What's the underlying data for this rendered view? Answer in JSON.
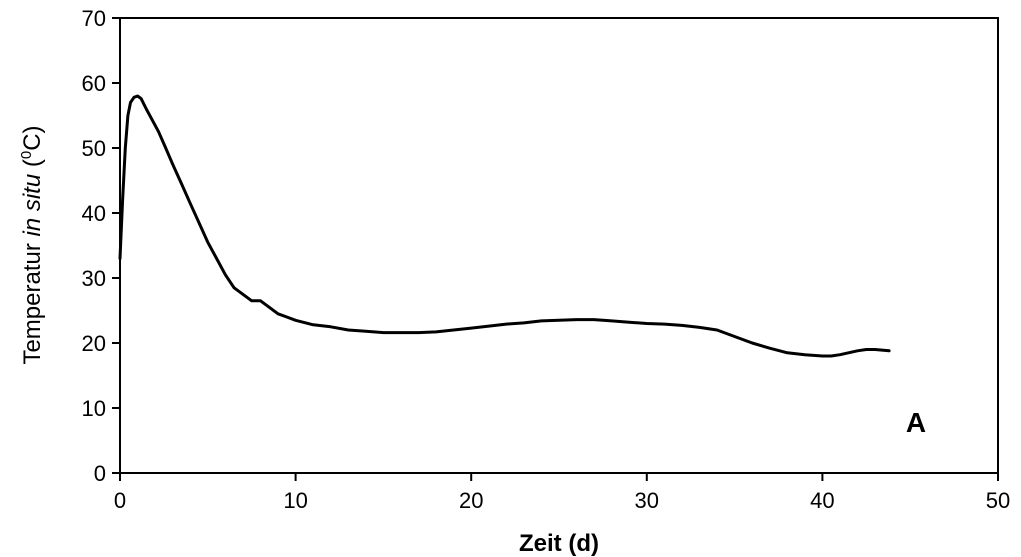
{
  "chart_data": {
    "type": "line",
    "xlabel": "Zeit (d)",
    "ylabel": {
      "prefix": "Temperatur ",
      "italic": "in situ",
      "unit_open": " (",
      "superscript": "0",
      "unit_close": "C)"
    },
    "panel_label": "A",
    "xlim": [
      0,
      50
    ],
    "ylim": [
      0,
      70
    ],
    "xticks": [
      0,
      10,
      20,
      30,
      40,
      50
    ],
    "yticks": [
      0,
      10,
      20,
      30,
      40,
      50,
      60,
      70
    ],
    "grid": false,
    "series": [
      {
        "color": "#000000",
        "x": [
          0.0,
          0.15,
          0.3,
          0.45,
          0.6,
          0.8,
          1.0,
          1.2,
          1.5,
          1.8,
          2.2,
          2.6,
          3.0,
          3.5,
          4.0,
          4.5,
          5.0,
          5.5,
          6.0,
          6.5,
          7.0,
          7.5,
          8.0,
          8.5,
          9.0,
          9.5,
          10.0,
          11.0,
          12.0,
          13.0,
          14.0,
          15.0,
          16.0,
          17.0,
          18.0,
          19.0,
          20.0,
          21.0,
          22.0,
          23.0,
          24.0,
          25.0,
          26.0,
          27.0,
          28.0,
          29.0,
          30.0,
          31.0,
          32.0,
          33.0,
          34.0,
          35.0,
          36.0,
          37.0,
          38.0,
          39.0,
          40.0,
          40.5,
          41.0,
          42.0,
          42.5,
          43.0,
          43.8
        ],
        "y": [
          33.0,
          42.0,
          50.0,
          55.0,
          57.0,
          57.8,
          58.0,
          57.6,
          56.0,
          54.5,
          52.5,
          50.0,
          47.5,
          44.5,
          41.5,
          38.5,
          35.5,
          33.0,
          30.5,
          28.5,
          27.5,
          26.5,
          26.5,
          25.5,
          24.5,
          24.0,
          23.5,
          22.8,
          22.5,
          22.0,
          21.8,
          21.6,
          21.6,
          21.6,
          21.7,
          22.0,
          22.3,
          22.6,
          22.9,
          23.1,
          23.4,
          23.5,
          23.6,
          23.6,
          23.4,
          23.2,
          23.0,
          22.9,
          22.7,
          22.4,
          22.0,
          21.0,
          20.0,
          19.2,
          18.5,
          18.2,
          18.0,
          18.0,
          18.2,
          18.8,
          19.0,
          19.0,
          18.8
        ]
      }
    ]
  }
}
